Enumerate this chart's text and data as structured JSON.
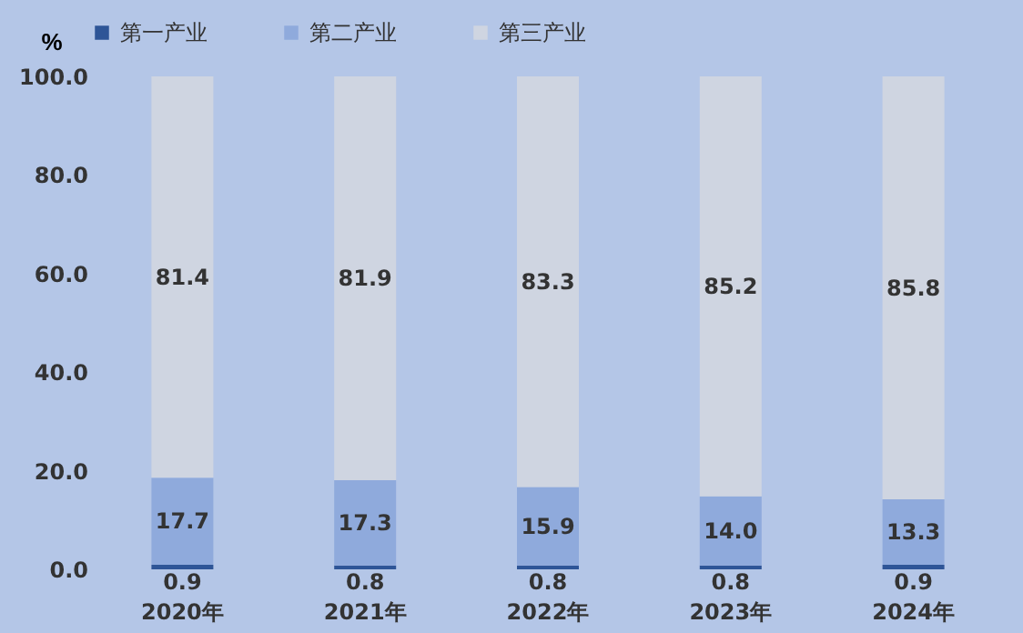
{
  "chart_data": {
    "type": "bar",
    "stacked": true,
    "ylabel": "%",
    "categories": [
      "2020年",
      "2021年",
      "2022年",
      "2023年",
      "2024年"
    ],
    "series": [
      {
        "name": "第一产业",
        "color": "#2e5597",
        "values": [
          0.9,
          0.8,
          0.8,
          0.8,
          0.9
        ],
        "value_labels": [
          "0.9",
          "0.8",
          "0.8",
          "0.8",
          "0.9"
        ]
      },
      {
        "name": "第二产业",
        "color": "#8faadc",
        "values": [
          17.7,
          17.3,
          15.9,
          14.0,
          13.3
        ],
        "value_labels": [
          "17.7",
          "17.3",
          "15.9",
          "14.0",
          "13.3"
        ]
      },
      {
        "name": "第三产业",
        "color": "#cfd5e1",
        "values": [
          81.4,
          81.9,
          83.3,
          85.2,
          85.8
        ],
        "value_labels": [
          "81.4",
          "81.9",
          "83.3",
          "85.2",
          "85.8"
        ]
      }
    ],
    "ylim": [
      0,
      100
    ],
    "yticks": [
      {
        "value": 0,
        "label": "0.0"
      },
      {
        "value": 20,
        "label": "20.0"
      },
      {
        "value": 40,
        "label": "40.0"
      },
      {
        "value": 60,
        "label": "60.0"
      },
      {
        "value": 80,
        "label": "80.0"
      },
      {
        "value": 100,
        "label": "100.0"
      }
    ],
    "grid": false,
    "legend": "top"
  }
}
